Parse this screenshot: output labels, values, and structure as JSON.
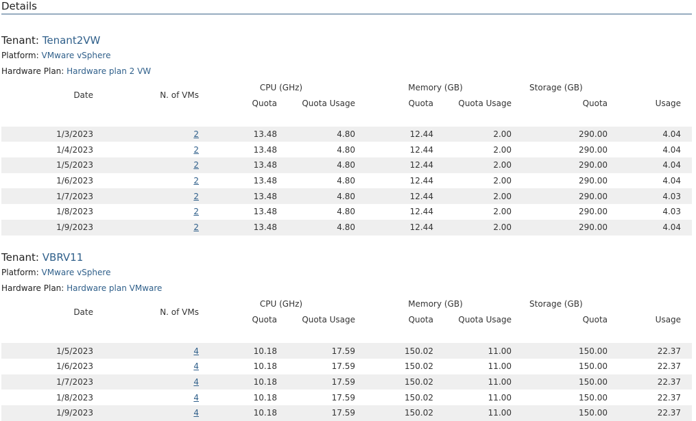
{
  "section_title": "Details",
  "labels": {
    "tenant": "Tenant:",
    "platform": "Platform:",
    "hardware_plan": "Hardware Plan:"
  },
  "columns": {
    "date": "Date",
    "vms": "N. of VMs",
    "cpu_group": "CPU (GHz)",
    "memory_group": "Memory (GB)",
    "storage_group": "Storage (GB)",
    "quota": "Quota",
    "quota_usage": "Quota Usage",
    "usage": "Usage"
  },
  "colors": {
    "link": "#2f5f8a",
    "over_quota": "#e05a4e",
    "row_alt": "#efefef",
    "rule": "#3a6287"
  },
  "tenants": [
    {
      "name": "Tenant2VW",
      "platform": "VMware vSphere",
      "hardware_plan": "Hardware plan 2 VW",
      "rows": [
        {
          "date": "1/3/2023",
          "vms": "2",
          "cpu_quota": "13.48",
          "cpu_usage": "4.80",
          "mem_quota": "12.44",
          "mem_usage": "2.00",
          "sto_quota": "290.00",
          "sto_usage": "4.04",
          "cpu_over": false
        },
        {
          "date": "1/4/2023",
          "vms": "2",
          "cpu_quota": "13.48",
          "cpu_usage": "4.80",
          "mem_quota": "12.44",
          "mem_usage": "2.00",
          "sto_quota": "290.00",
          "sto_usage": "4.04",
          "cpu_over": false
        },
        {
          "date": "1/5/2023",
          "vms": "2",
          "cpu_quota": "13.48",
          "cpu_usage": "4.80",
          "mem_quota": "12.44",
          "mem_usage": "2.00",
          "sto_quota": "290.00",
          "sto_usage": "4.04",
          "cpu_over": false
        },
        {
          "date": "1/6/2023",
          "vms": "2",
          "cpu_quota": "13.48",
          "cpu_usage": "4.80",
          "mem_quota": "12.44",
          "mem_usage": "2.00",
          "sto_quota": "290.00",
          "sto_usage": "4.04",
          "cpu_over": false
        },
        {
          "date": "1/7/2023",
          "vms": "2",
          "cpu_quota": "13.48",
          "cpu_usage": "4.80",
          "mem_quota": "12.44",
          "mem_usage": "2.00",
          "sto_quota": "290.00",
          "sto_usage": "4.03",
          "cpu_over": false
        },
        {
          "date": "1/8/2023",
          "vms": "2",
          "cpu_quota": "13.48",
          "cpu_usage": "4.80",
          "mem_quota": "12.44",
          "mem_usage": "2.00",
          "sto_quota": "290.00",
          "sto_usage": "4.03",
          "cpu_over": false
        },
        {
          "date": "1/9/2023",
          "vms": "2",
          "cpu_quota": "13.48",
          "cpu_usage": "4.80",
          "mem_quota": "12.44",
          "mem_usage": "2.00",
          "sto_quota": "290.00",
          "sto_usage": "4.04",
          "cpu_over": false
        }
      ]
    },
    {
      "name": "VBRV11",
      "platform": "VMware vSphere",
      "hardware_plan": "Hardware plan VMware",
      "rows": [
        {
          "date": "1/5/2023",
          "vms": "4",
          "cpu_quota": "10.18",
          "cpu_usage": "17.59",
          "mem_quota": "150.02",
          "mem_usage": "11.00",
          "sto_quota": "150.00",
          "sto_usage": "22.37",
          "cpu_over": true
        },
        {
          "date": "1/6/2023",
          "vms": "4",
          "cpu_quota": "10.18",
          "cpu_usage": "17.59",
          "mem_quota": "150.02",
          "mem_usage": "11.00",
          "sto_quota": "150.00",
          "sto_usage": "22.37",
          "cpu_over": true
        },
        {
          "date": "1/7/2023",
          "vms": "4",
          "cpu_quota": "10.18",
          "cpu_usage": "17.59",
          "mem_quota": "150.02",
          "mem_usage": "11.00",
          "sto_quota": "150.00",
          "sto_usage": "22.37",
          "cpu_over": true
        },
        {
          "date": "1/8/2023",
          "vms": "4",
          "cpu_quota": "10.18",
          "cpu_usage": "17.59",
          "mem_quota": "150.02",
          "mem_usage": "11.00",
          "sto_quota": "150.00",
          "sto_usage": "22.37",
          "cpu_over": true
        },
        {
          "date": "1/9/2023",
          "vms": "4",
          "cpu_quota": "10.18",
          "cpu_usage": "17.59",
          "mem_quota": "150.02",
          "mem_usage": "11.00",
          "sto_quota": "150.00",
          "sto_usage": "22.37",
          "cpu_over": true
        }
      ]
    }
  ]
}
